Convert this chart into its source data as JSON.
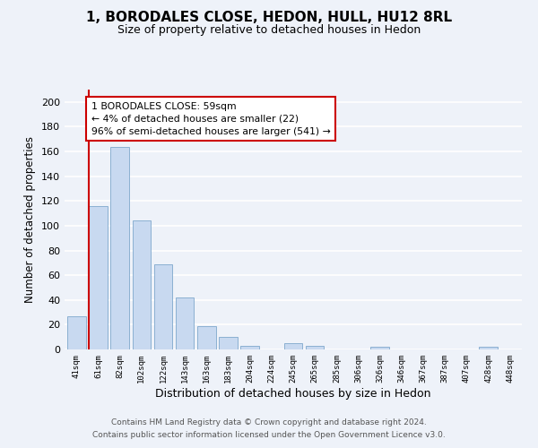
{
  "title": "1, BORODALES CLOSE, HEDON, HULL, HU12 8RL",
  "subtitle": "Size of property relative to detached houses in Hedon",
  "xlabel": "Distribution of detached houses by size in Hedon",
  "ylabel": "Number of detached properties",
  "bar_color": "#c8d9f0",
  "bar_edge_color": "#7fa8cc",
  "annotation_box_color": "#ffffff",
  "annotation_border_color": "#cc0000",
  "property_line_color": "#cc0000",
  "bin_labels": [
    "41sqm",
    "61sqm",
    "82sqm",
    "102sqm",
    "122sqm",
    "143sqm",
    "163sqm",
    "183sqm",
    "204sqm",
    "224sqm",
    "245sqm",
    "265sqm",
    "285sqm",
    "306sqm",
    "326sqm",
    "346sqm",
    "367sqm",
    "387sqm",
    "407sqm",
    "428sqm",
    "448sqm"
  ],
  "bar_values": [
    27,
    116,
    164,
    104,
    69,
    42,
    19,
    10,
    3,
    0,
    5,
    3,
    0,
    0,
    2,
    0,
    0,
    0,
    0,
    2,
    0
  ],
  "property_bin_index": 1,
  "property_label": "1 BORODALES CLOSE: 59sqm",
  "annotation_line1": "← 4% of detached houses are smaller (22)",
  "annotation_line2": "96% of semi-detached houses are larger (541) →",
  "ylim": [
    0,
    210
  ],
  "yticks": [
    0,
    20,
    40,
    60,
    80,
    100,
    120,
    140,
    160,
    180,
    200
  ],
  "footer_line1": "Contains HM Land Registry data © Crown copyright and database right 2024.",
  "footer_line2": "Contains public sector information licensed under the Open Government Licence v3.0.",
  "background_color": "#eef2f9",
  "plot_bg_color": "#eef2f9",
  "grid_color": "#ffffff"
}
